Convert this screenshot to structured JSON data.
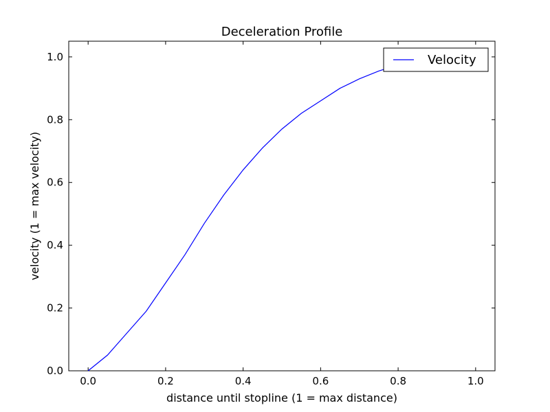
{
  "chart_data": {
    "type": "line",
    "title": "Deceleration Profile",
    "xlabel": "distance until stopline (1 = max distance)",
    "ylabel": "velocity (1 = max velocity)",
    "xlim": [
      -0.05,
      1.05
    ],
    "ylim": [
      0.0,
      1.05
    ],
    "x_ticks": [
      "0.0",
      "0.2",
      "0.4",
      "0.6",
      "0.8",
      "1.0"
    ],
    "y_ticks": [
      "0.0",
      "0.2",
      "0.4",
      "0.6",
      "0.8",
      "1.0"
    ],
    "grid": false,
    "legend_position": "top-right",
    "series": [
      {
        "name": "Velocity",
        "color": "#0000ff",
        "x": [
          0.0,
          0.05,
          0.1,
          0.15,
          0.2,
          0.25,
          0.3,
          0.35,
          0.4,
          0.45,
          0.5,
          0.55,
          0.6,
          0.65,
          0.7,
          0.75,
          0.8,
          0.85,
          0.9,
          0.95,
          1.0
        ],
        "y": [
          0.0,
          0.05,
          0.12,
          0.19,
          0.28,
          0.37,
          0.47,
          0.56,
          0.64,
          0.71,
          0.77,
          0.82,
          0.86,
          0.9,
          0.93,
          0.955,
          0.975,
          0.988,
          0.995,
          0.999,
          1.0
        ]
      }
    ]
  }
}
